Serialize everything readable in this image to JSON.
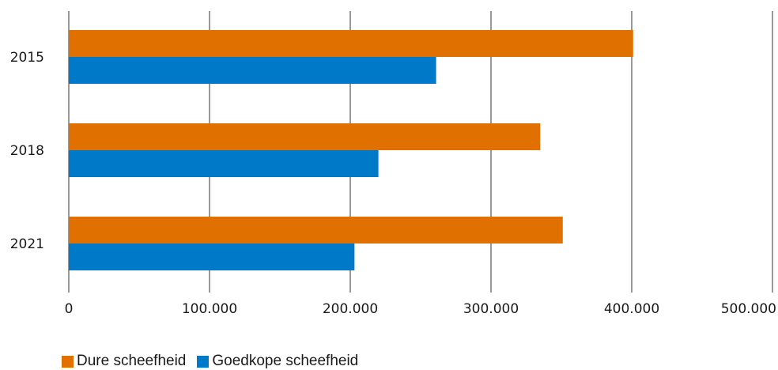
{
  "chart_data": {
    "type": "bar",
    "orientation": "horizontal",
    "title": "",
    "xlabel": "",
    "ylabel": "",
    "categories": [
      "2015",
      "2018",
      "2021"
    ],
    "series": [
      {
        "name": "Dure scheefheid",
        "color": "#e07000",
        "values": [
          401000,
          335000,
          351000
        ]
      },
      {
        "name": "Goedkope scheefheid",
        "color": "#0079c8",
        "values": [
          261000,
          220000,
          203000
        ]
      }
    ],
    "xlim": [
      0,
      500000
    ],
    "x_ticks": [
      0,
      100000,
      200000,
      300000,
      400000,
      500000
    ],
    "x_tick_labels": [
      "0",
      "100.000",
      "200.000",
      "300.000",
      "400.000",
      "500.000"
    ],
    "grid": "vertical",
    "legend_position": "bottom-left"
  }
}
